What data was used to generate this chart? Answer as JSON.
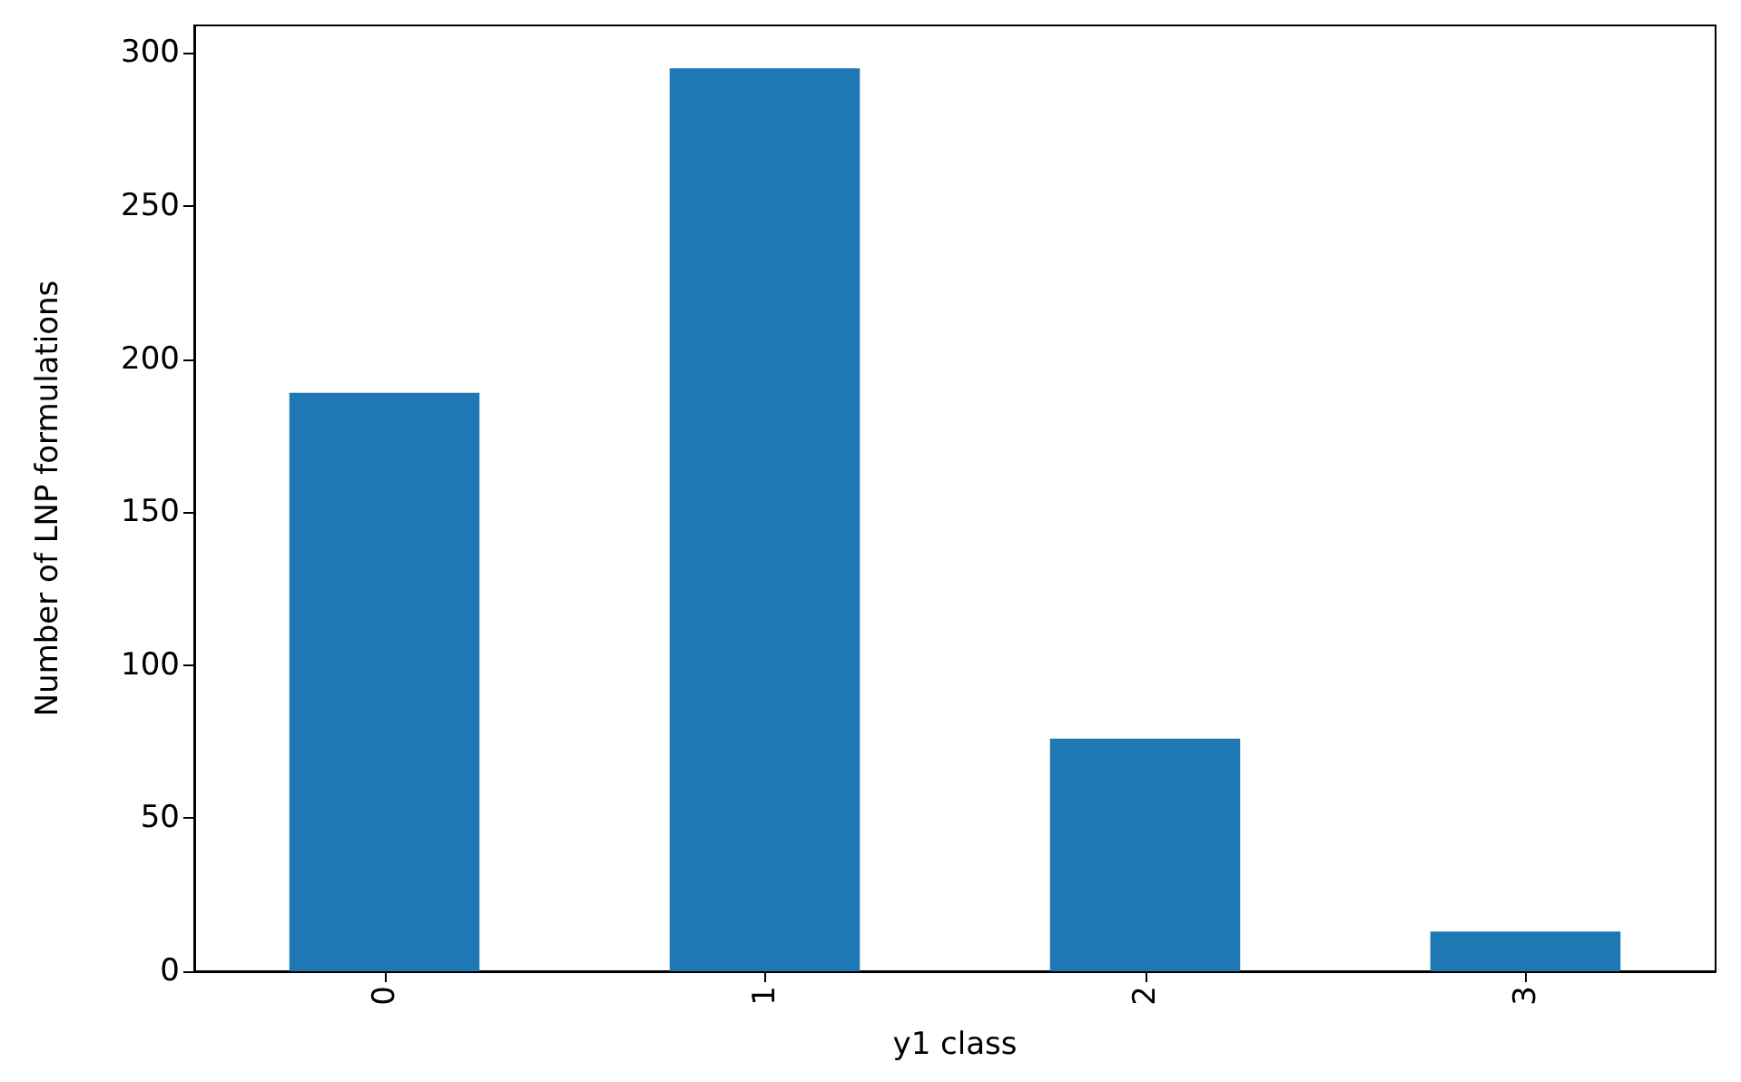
{
  "chart_data": {
    "type": "bar",
    "xlabel": "y1 class",
    "ylabel": "Number of LNP formulations",
    "categories": [
      "0",
      "1",
      "2",
      "3"
    ],
    "values": [
      189,
      295,
      76,
      13
    ],
    "color": "#1f77b4",
    "ylim": [
      0,
      309
    ],
    "yticks": [
      0,
      50,
      100,
      150,
      200,
      250,
      300
    ],
    "grid": false
  }
}
